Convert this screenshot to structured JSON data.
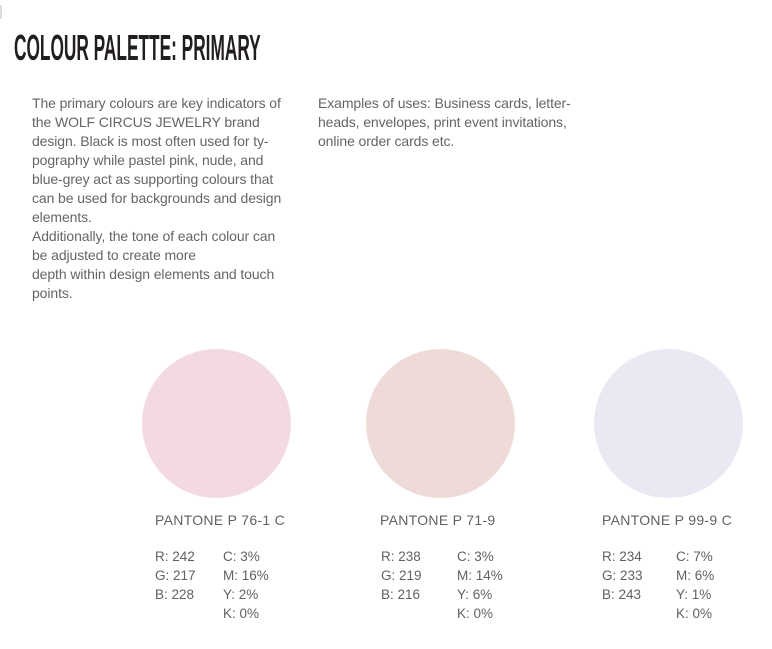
{
  "header": {
    "title": "COLOUR PALETTE: PRIMARY"
  },
  "intro": {
    "paragraph1": [
      "The primary colours are key indicators of",
      "the WOLF CIRCUS JEWELRY brand",
      "design. Black is most often used for ty-",
      "pography while pastel pink, nude, and",
      "blue-grey act as supporting colours that",
      "can be used for backgrounds and design",
      "elements."
    ],
    "paragraph2": [
      "Additionally, the tone of each colour can",
      "be adjusted to create more",
      "depth within design elements and touch",
      "points."
    ],
    "examples": [
      "Examples of uses: Business cards, letter-",
      "heads, envelopes, print event invitations,",
      "online order cards etc."
    ]
  },
  "palette": {
    "swatches": [
      {
        "pantone": "PANTONE P 76-1 C",
        "hex": "#F2D9E4",
        "rgb": [
          "R: 242",
          "G: 217",
          "B: 228"
        ],
        "cmyk": [
          "C: 3%",
          "M: 16%",
          "Y: 2%",
          "K: 0%"
        ]
      },
      {
        "pantone": "PANTONE P 71-9",
        "hex": "#EEDBD8",
        "rgb": [
          "R: 238",
          "G: 219",
          "B: 216"
        ],
        "cmyk": [
          "C: 3%",
          "M: 14%",
          "Y: 6%",
          "K: 0%"
        ]
      },
      {
        "pantone": "PANTONE P 99-9 C",
        "hex": "#EAE9F3",
        "rgb": [
          "R: 234",
          "G: 233",
          "B: 243"
        ],
        "cmyk": [
          "C: 7%",
          "M: 6%",
          "Y: 1%",
          "K: 0%"
        ]
      }
    ],
    "title_color": "#221e1f",
    "body_text_color": "#646567"
  }
}
